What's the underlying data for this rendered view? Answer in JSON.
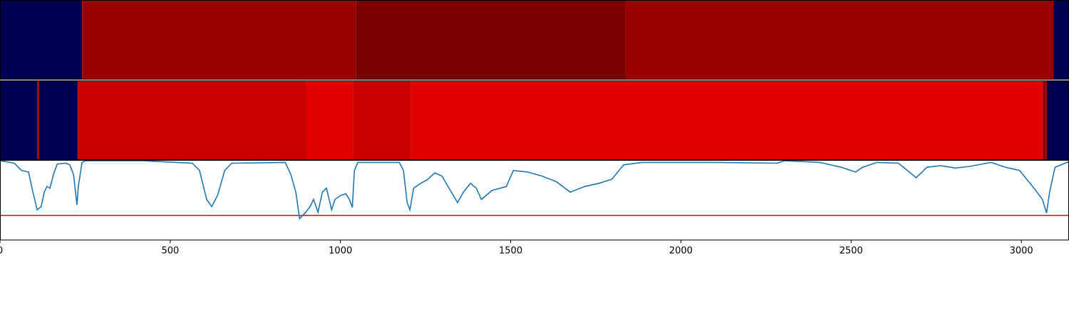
{
  "chart_data": [
    {
      "type": "segments",
      "xlim": [
        0,
        3140
      ],
      "segments": [
        {
          "start": 0,
          "end": 241,
          "color": "#000050"
        },
        {
          "start": 241,
          "end": 1045,
          "color": "#990000"
        },
        {
          "start": 1045,
          "end": 1837,
          "color": "#7a0000"
        },
        {
          "start": 1837,
          "end": 3095,
          "color": "#990000"
        },
        {
          "start": 3095,
          "end": 3140,
          "color": "#000050"
        }
      ]
    },
    {
      "type": "segments",
      "xlim": [
        0,
        3140
      ],
      "segments": [
        {
          "start": 0,
          "end": 109,
          "color": "#000050"
        },
        {
          "start": 109,
          "end": 115,
          "color": "#990000"
        },
        {
          "start": 115,
          "end": 228,
          "color": "#000050"
        },
        {
          "start": 228,
          "end": 898,
          "color": "#c80000"
        },
        {
          "start": 898,
          "end": 1037,
          "color": "#e00000"
        },
        {
          "start": 1037,
          "end": 1206,
          "color": "#c80000"
        },
        {
          "start": 1206,
          "end": 3062,
          "color": "#e00000"
        },
        {
          "start": 3062,
          "end": 3075,
          "color": "#990000"
        },
        {
          "start": 3075,
          "end": 3140,
          "color": "#000050"
        }
      ]
    },
    {
      "type": "line",
      "xlim": [
        0,
        3140
      ],
      "ylim": [
        0,
        1
      ],
      "xticks": [
        0,
        500,
        1000,
        1500,
        2000,
        2500,
        3000
      ],
      "threshold": 0.31,
      "threshold_color": "#e00000",
      "series": [
        {
          "color": "#1f77b4",
          "x": [
            0,
            42,
            63,
            84,
            94,
            109,
            121,
            130,
            138,
            147,
            157,
            168,
            193,
            205,
            216,
            226,
            230,
            241,
            251,
            419,
            565,
            586,
            607,
            622,
            639,
            660,
            681,
            838,
            854,
            869,
            880,
            896,
            911,
            921,
            934,
            947,
            959,
            974,
            984,
            1001,
            1016,
            1026,
            1035,
            1041,
            1051,
            1173,
            1185,
            1196,
            1204,
            1215,
            1236,
            1257,
            1277,
            1298,
            1319,
            1344,
            1361,
            1382,
            1399,
            1414,
            1445,
            1487,
            1508,
            1550,
            1592,
            1634,
            1675,
            1717,
            1759,
            1797,
            1832,
            1885,
            2094,
            2283,
            2304,
            2408,
            2471,
            2513,
            2534,
            2576,
            2639,
            2691,
            2723,
            2764,
            2806,
            2848,
            2911,
            2953,
            2995,
            3037,
            3062,
            3074,
            3083,
            3099,
            3140
          ],
          "values": [
            0.99,
            0.96,
            0.87,
            0.85,
            0.65,
            0.38,
            0.42,
            0.6,
            0.67,
            0.65,
            0.82,
            0.95,
            0.96,
            0.94,
            0.82,
            0.44,
            0.67,
            0.97,
            0.99,
            0.99,
            0.96,
            0.87,
            0.51,
            0.42,
            0.56,
            0.87,
            0.96,
            0.97,
            0.82,
            0.6,
            0.27,
            0.34,
            0.42,
            0.51,
            0.35,
            0.6,
            0.65,
            0.38,
            0.51,
            0.56,
            0.58,
            0.51,
            0.41,
            0.87,
            0.97,
            0.97,
            0.87,
            0.47,
            0.38,
            0.65,
            0.71,
            0.76,
            0.84,
            0.8,
            0.65,
            0.47,
            0.6,
            0.71,
            0.65,
            0.51,
            0.62,
            0.67,
            0.87,
            0.85,
            0.8,
            0.73,
            0.6,
            0.67,
            0.71,
            0.76,
            0.94,
            0.97,
            0.97,
            0.96,
            0.99,
            0.97,
            0.91,
            0.85,
            0.91,
            0.97,
            0.96,
            0.78,
            0.91,
            0.93,
            0.9,
            0.92,
            0.97,
            0.91,
            0.87,
            0.65,
            0.51,
            0.34,
            0.6,
            0.91,
            0.98
          ]
        }
      ]
    }
  ]
}
